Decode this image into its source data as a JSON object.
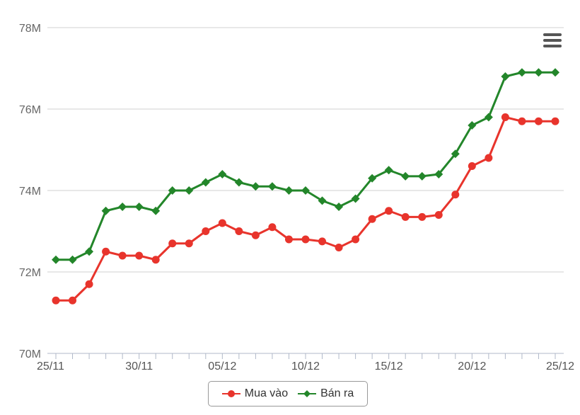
{
  "chart_data": {
    "type": "line",
    "ylim": [
      70,
      78
    ],
    "y_ticks": [
      70,
      72,
      74,
      76,
      78
    ],
    "y_tick_labels": [
      "70M",
      "72M",
      "74M",
      "76M",
      "78M"
    ],
    "x_tick_labels": [
      "25/11",
      "30/11",
      "05/12",
      "10/12",
      "15/12",
      "20/12",
      "25/12"
    ],
    "x_tick_dates": [
      0,
      5,
      10,
      15,
      20,
      25,
      30
    ],
    "x": [
      "25/11",
      "26/11",
      "27/11",
      "28/11",
      "29/11",
      "30/11",
      "01/12",
      "02/12",
      "03/12",
      "04/12",
      "05/12",
      "06/12",
      "07/12",
      "08/12",
      "09/12",
      "10/12",
      "11/12",
      "12/12",
      "13/12",
      "14/12",
      "15/12",
      "16/12",
      "17/12",
      "18/12",
      "19/12",
      "20/12",
      "21/12",
      "22/12",
      "23/12",
      "24/12",
      "25/12"
    ],
    "series": [
      {
        "name": "Mua vào",
        "color": "#e8342c",
        "marker": "circle",
        "values": [
          71.3,
          71.3,
          71.7,
          72.5,
          72.4,
          72.4,
          72.3,
          72.7,
          72.7,
          73.0,
          73.2,
          73.0,
          72.9,
          73.1,
          72.8,
          72.8,
          72.75,
          72.6,
          72.8,
          73.3,
          73.5,
          73.35,
          73.35,
          73.4,
          73.9,
          74.6,
          74.8,
          75.8,
          75.7,
          75.7,
          75.7
        ]
      },
      {
        "name": "Bán ra",
        "color": "#23862a",
        "marker": "diamond",
        "values": [
          72.3,
          72.3,
          72.5,
          73.5,
          73.6,
          73.6,
          73.5,
          74.0,
          74.0,
          74.2,
          74.4,
          74.2,
          74.1,
          74.1,
          74.0,
          74.0,
          73.75,
          73.6,
          73.8,
          74.3,
          74.5,
          74.35,
          74.35,
          74.4,
          74.9,
          75.6,
          75.8,
          76.8,
          76.9,
          76.9,
          76.9
        ]
      }
    ],
    "grid": true,
    "legend_position": "bottom-center"
  },
  "menu": {
    "icon": "hamburger-menu-icon"
  }
}
